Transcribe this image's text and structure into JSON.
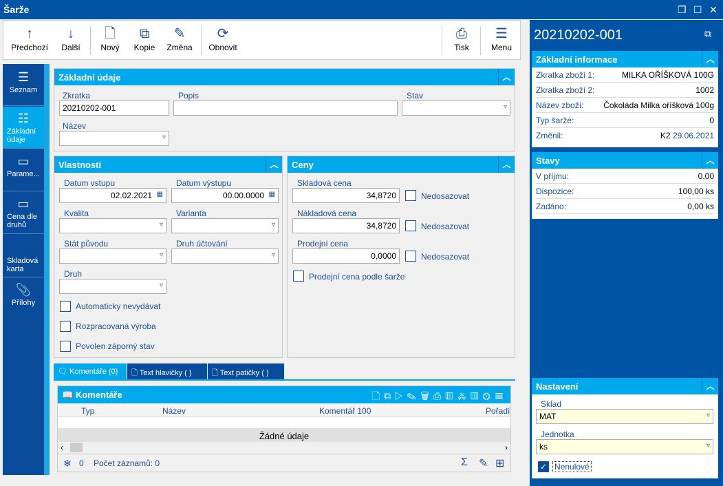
{
  "window": {
    "title": "Šarže",
    "buttons": [
      "restore",
      "maximize",
      "close"
    ]
  },
  "toolbar": {
    "prev": "Předchozí",
    "next": "Další",
    "new": "Nový",
    "copy": "Kopie",
    "edit": "Změna",
    "refresh": "Obnovit",
    "print": "Tisk",
    "menu": "Menu"
  },
  "nav": [
    {
      "label": "Seznam"
    },
    {
      "label": "Základní údaje"
    },
    {
      "label": "Parame..."
    },
    {
      "label": "Cena dle druhů"
    },
    {
      "label": "Skladová karta"
    },
    {
      "label": "Přílohy"
    }
  ],
  "basic": {
    "title": "Základní údaje",
    "zkratka_label": "Zkratka",
    "zkratka": "20210202-001",
    "popis_label": "Popis",
    "popis": "",
    "stav_label": "Stav",
    "stav": "",
    "nazev_label": "Název",
    "nazev": ""
  },
  "props": {
    "title": "Vlastnosti",
    "datum_vstupu_label": "Datum vstupu",
    "datum_vstupu": "02.02.2021",
    "datum_vystupu_label": "Datum výstupu",
    "datum_vystupu": "00.00.0000",
    "kvalita_label": "Kvalita",
    "varianta_label": "Varianta",
    "stat_label": "Stát původu",
    "druh_uctovani_label": "Druh účtování",
    "druh_label": "Druh",
    "cb1": "Automaticky nevydávat",
    "cb2": "Rozpracovaná výroba",
    "cb3": "Povolen záporný stav"
  },
  "prices": {
    "title": "Ceny",
    "skladova_label": "Skladová cena",
    "skladova": "34,8720",
    "nakladova_label": "Nákladová cena",
    "nakladova": "34,8720",
    "prodejni_label": "Prodejní cena",
    "prodejni": "0,0000",
    "nedosazovat": "Nedosazovat",
    "podle_sarze": "Prodejní cena podle šarže"
  },
  "tabs": [
    {
      "label": "Komentáře (0)"
    },
    {
      "label": "Text hlavičky ( )"
    },
    {
      "label": "Text patičky ( )"
    }
  ],
  "comments": {
    "title": "Komentáře",
    "columns": [
      "Typ",
      "Název",
      "Komentář 100",
      "Pořadí"
    ],
    "empty": "Žádné údaje",
    "count_zero": "0",
    "records": "Počet záznamů: 0"
  },
  "info": {
    "heading": "20210202-001",
    "section_title": "Základní informace",
    "rows": [
      {
        "k": "Zkratka zboží 1:",
        "v": "MILKA OŘÍŠKOVÁ 100G"
      },
      {
        "k": "Zkratka zboží 2:",
        "v": "1002"
      },
      {
        "k": "Název zboží:",
        "v": "Čokoláda Milka oříšková 100g"
      },
      {
        "k": "Typ šarže:",
        "v": "0"
      }
    ],
    "changed_label": "Změnil:",
    "changed_user": "K2",
    "changed_date": "29.06.2021"
  },
  "stavy": {
    "title": "Stavy",
    "rows": [
      {
        "k": "V příjmu:",
        "v": "0,00"
      },
      {
        "k": "Dispozice:",
        "v": "100,00 ks"
      },
      {
        "k": "Zadáno:",
        "v": "0,00 ks"
      }
    ]
  },
  "settings": {
    "title": "Nastavení",
    "sklad_label": "Sklad",
    "sklad": "MAT",
    "jednotka_label": "Jednotka",
    "jednotka": "ks",
    "nenulove": "Nenulové",
    "nenulove_checked": true
  }
}
